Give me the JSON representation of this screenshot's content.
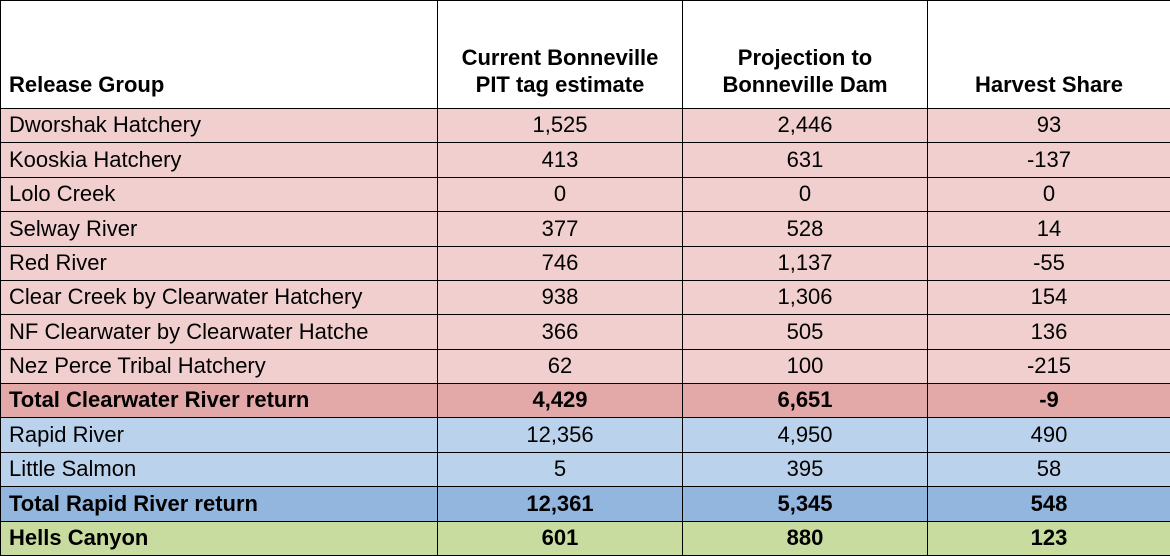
{
  "colors": {
    "header_bg": "#ffffff",
    "pink_light": "#f1cfcf",
    "pink_dark": "#e2a9a8",
    "blue_light": "#bbd2ec",
    "blue_dark": "#92b6de",
    "green": "#c8dca0",
    "border": "#000000",
    "text": "#000000"
  },
  "columns": {
    "release_group": "Release Group",
    "pit_estimate": "Current Bonneville PIT tag estimate",
    "projection": "Projection to Bonneville Dam",
    "harvest": "Harvest Share"
  },
  "rows": [
    {
      "label": "Dworshak Hatchery",
      "pit": "1,525",
      "proj": "2,446",
      "harv": "93",
      "bg": "pink_light",
      "bold": false
    },
    {
      "label": "Kooskia Hatchery",
      "pit": "413",
      "proj": "631",
      "harv": "-137",
      "bg": "pink_light",
      "bold": false
    },
    {
      "label": "Lolo Creek",
      "pit": "0",
      "proj": "0",
      "harv": "0",
      "bg": "pink_light",
      "bold": false
    },
    {
      "label": "Selway River",
      "pit": "377",
      "proj": "528",
      "harv": "14",
      "bg": "pink_light",
      "bold": false
    },
    {
      "label": "Red River",
      "pit": "746",
      "proj": "1,137",
      "harv": "-55",
      "bg": "pink_light",
      "bold": false
    },
    {
      "label": "Clear Creek by Clearwater Hatchery",
      "pit": "938",
      "proj": "1,306",
      "harv": "154",
      "bg": "pink_light",
      "bold": false
    },
    {
      "label": "NF Clearwater by Clearwater Hatche",
      "pit": "366",
      "proj": "505",
      "harv": "136",
      "bg": "pink_light",
      "bold": false
    },
    {
      "label": "Nez Perce Tribal Hatchery",
      "pit": "62",
      "proj": "100",
      "harv": "-215",
      "bg": "pink_light",
      "bold": false
    },
    {
      "label": "Total Clearwater River return",
      "pit": "4,429",
      "proj": "6,651",
      "harv": "-9",
      "bg": "pink_dark",
      "bold": true
    },
    {
      "label": "Rapid River",
      "pit": "12,356",
      "proj": "4,950",
      "harv": "490",
      "bg": "blue_light",
      "bold": false
    },
    {
      "label": "Little Salmon",
      "pit": "5",
      "proj": "395",
      "harv": "58",
      "bg": "blue_light",
      "bold": false
    },
    {
      "label": "Total Rapid River return",
      "pit": "12,361",
      "proj": "5,345",
      "harv": "548",
      "bg": "blue_dark",
      "bold": true
    },
    {
      "label": "Hells Canyon",
      "pit": "601",
      "proj": "880",
      "harv": "123",
      "bg": "green",
      "bold": true
    }
  ]
}
